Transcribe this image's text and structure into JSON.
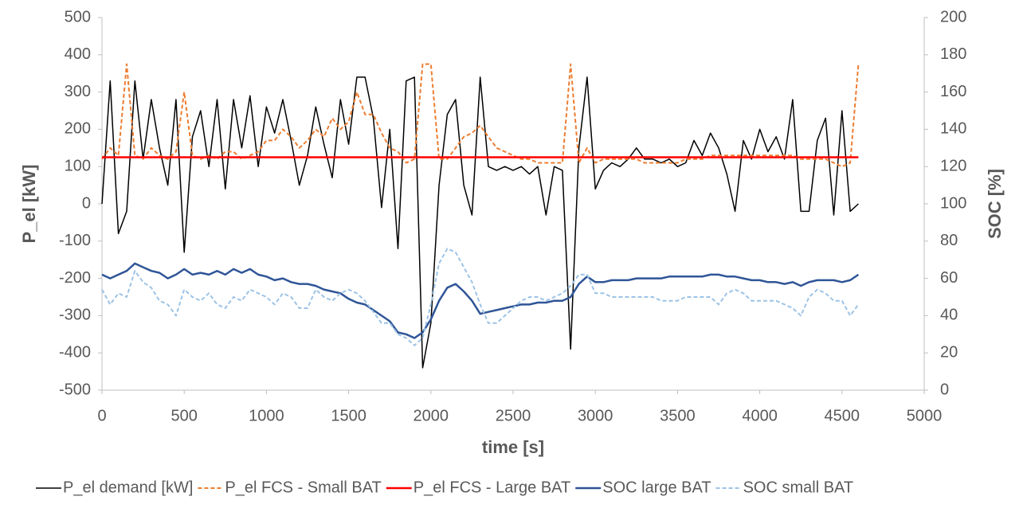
{
  "chart_data": {
    "type": "line",
    "xlabel": "time [s]",
    "ylabel": "P_el [kW]",
    "y2label": "SOC [%]",
    "xlim": [
      0,
      5000
    ],
    "xticks": [
      0,
      500,
      1000,
      1500,
      2000,
      2500,
      3000,
      3500,
      4000,
      4500,
      5000
    ],
    "ylim": [
      -500,
      500
    ],
    "yticks": [
      -500,
      -400,
      -300,
      -200,
      -100,
      0,
      100,
      200,
      300,
      400,
      500
    ],
    "y2lim": [
      0,
      200
    ],
    "y2ticks": [
      0,
      20,
      40,
      60,
      80,
      100,
      120,
      140,
      160,
      180,
      200
    ],
    "grid": false,
    "legend": "bottom",
    "x": [
      0,
      50,
      100,
      150,
      200,
      250,
      300,
      350,
      400,
      450,
      500,
      550,
      600,
      650,
      700,
      750,
      800,
      850,
      900,
      950,
      1000,
      1050,
      1100,
      1150,
      1200,
      1250,
      1300,
      1350,
      1400,
      1450,
      1500,
      1550,
      1600,
      1650,
      1700,
      1750,
      1800,
      1850,
      1900,
      1950,
      2000,
      2050,
      2100,
      2150,
      2200,
      2250,
      2300,
      2350,
      2400,
      2450,
      2500,
      2550,
      2600,
      2650,
      2700,
      2750,
      2800,
      2850,
      2900,
      2950,
      3000,
      3050,
      3100,
      3150,
      3200,
      3250,
      3300,
      3350,
      3400,
      3450,
      3500,
      3550,
      3600,
      3650,
      3700,
      3750,
      3800,
      3850,
      3900,
      3950,
      4000,
      4050,
      4100,
      4150,
      4200,
      4250,
      4300,
      4350,
      4400,
      4450,
      4500,
      4550,
      4600
    ],
    "series": [
      {
        "name": "P_el demand [kW]",
        "color": "#000000",
        "dash": false,
        "width": 1.5,
        "values": [
          0,
          330,
          -80,
          -20,
          330,
          120,
          280,
          150,
          50,
          280,
          -130,
          180,
          250,
          100,
          280,
          40,
          280,
          150,
          290,
          100,
          260,
          190,
          280,
          170,
          50,
          130,
          260,
          160,
          70,
          280,
          160,
          340,
          340,
          230,
          -10,
          200,
          -120,
          330,
          340,
          -440,
          -320,
          50,
          240,
          280,
          50,
          -30,
          340,
          100,
          90,
          100,
          90,
          100,
          80,
          100,
          -30,
          100,
          90,
          -390,
          150,
          340,
          40,
          90,
          110,
          100,
          120,
          150,
          120,
          120,
          110,
          120,
          100,
          110,
          170,
          130,
          190,
          150,
          80,
          -20,
          170,
          120,
          200,
          140,
          180,
          120,
          280,
          -20,
          -20,
          170,
          230,
          -30,
          250,
          -20,
          0
        ]
      },
      {
        "name": "P_el FCS - Small BAT",
        "color": "#ed7d31",
        "dash": true,
        "width": 2,
        "values": [
          120,
          150,
          130,
          375,
          130,
          120,
          150,
          130,
          120,
          140,
          300,
          130,
          120,
          130,
          120,
          140,
          140,
          120,
          130,
          140,
          170,
          170,
          200,
          180,
          150,
          170,
          200,
          180,
          230,
          200,
          220,
          300,
          240,
          240,
          190,
          150,
          140,
          110,
          120,
          375,
          375,
          120,
          120,
          150,
          180,
          190,
          210,
          180,
          150,
          140,
          130,
          120,
          120,
          110,
          110,
          110,
          110,
          375,
          110,
          150,
          110,
          120,
          120,
          120,
          120,
          120,
          110,
          110,
          110,
          110,
          110,
          120,
          120,
          120,
          130,
          130,
          130,
          130,
          130,
          130,
          130,
          130,
          130,
          130,
          130,
          120,
          120,
          120,
          120,
          110,
          100,
          110,
          375
        ]
      },
      {
        "name": "P_el FCS - Large BAT",
        "color": "#ff0000",
        "dash": false,
        "width": 2.5,
        "values": [
          125,
          125,
          125,
          125,
          125,
          125,
          125,
          125,
          125,
          125,
          125,
          125,
          125,
          125,
          125,
          125,
          125,
          125,
          125,
          125,
          125,
          125,
          125,
          125,
          125,
          125,
          125,
          125,
          125,
          125,
          125,
          125,
          125,
          125,
          125,
          125,
          125,
          125,
          125,
          125,
          125,
          125,
          125,
          125,
          125,
          125,
          125,
          125,
          125,
          125,
          125,
          125,
          125,
          125,
          125,
          125,
          125,
          125,
          125,
          125,
          125,
          125,
          125,
          125,
          125,
          125,
          125,
          125,
          125,
          125,
          125,
          125,
          125,
          125,
          125,
          125,
          125,
          125,
          125,
          125,
          125,
          125,
          125,
          125,
          125,
          125,
          125,
          125,
          125,
          125,
          125,
          125,
          125
        ]
      },
      {
        "name": "SOC large BAT",
        "color": "#2f5597",
        "dash": false,
        "width": 2.5,
        "axis": "y2",
        "values": [
          62,
          60,
          62,
          64,
          68,
          66,
          64,
          63,
          60,
          62,
          65,
          62,
          63,
          62,
          64,
          62,
          65,
          63,
          65,
          62,
          61,
          59,
          60,
          58,
          57,
          57,
          56,
          54,
          53,
          52,
          49,
          47,
          46,
          43,
          40,
          37,
          31,
          30,
          28,
          31,
          38,
          48,
          55,
          57,
          53,
          48,
          41,
          42,
          43,
          44,
          45,
          46,
          46,
          47,
          47,
          48,
          48,
          50,
          57,
          61,
          58,
          58,
          59,
          59,
          59,
          60,
          60,
          60,
          60,
          61,
          61,
          61,
          61,
          61,
          62,
          62,
          61,
          61,
          60,
          59,
          59,
          58,
          58,
          57,
          58,
          56,
          58,
          59,
          59,
          59,
          58,
          59,
          62
        ]
      },
      {
        "name": "SOC small BAT",
        "color": "#9dc3e6",
        "dash": true,
        "width": 2,
        "axis": "y2",
        "values": [
          54,
          46,
          52,
          50,
          64,
          58,
          55,
          48,
          46,
          40,
          54,
          50,
          48,
          52,
          46,
          44,
          50,
          48,
          54,
          52,
          50,
          46,
          52,
          50,
          44,
          44,
          54,
          50,
          48,
          52,
          54,
          52,
          48,
          42,
          36,
          36,
          30,
          28,
          24,
          28,
          46,
          68,
          76,
          74,
          66,
          58,
          46,
          36,
          36,
          40,
          44,
          48,
          50,
          50,
          48,
          50,
          52,
          56,
          62,
          62,
          52,
          52,
          50,
          50,
          50,
          50,
          50,
          50,
          48,
          48,
          48,
          50,
          50,
          50,
          50,
          46,
          52,
          54,
          52,
          48,
          48,
          48,
          48,
          46,
          44,
          40,
          50,
          54,
          52,
          48,
          48,
          40,
          46
        ]
      }
    ]
  }
}
